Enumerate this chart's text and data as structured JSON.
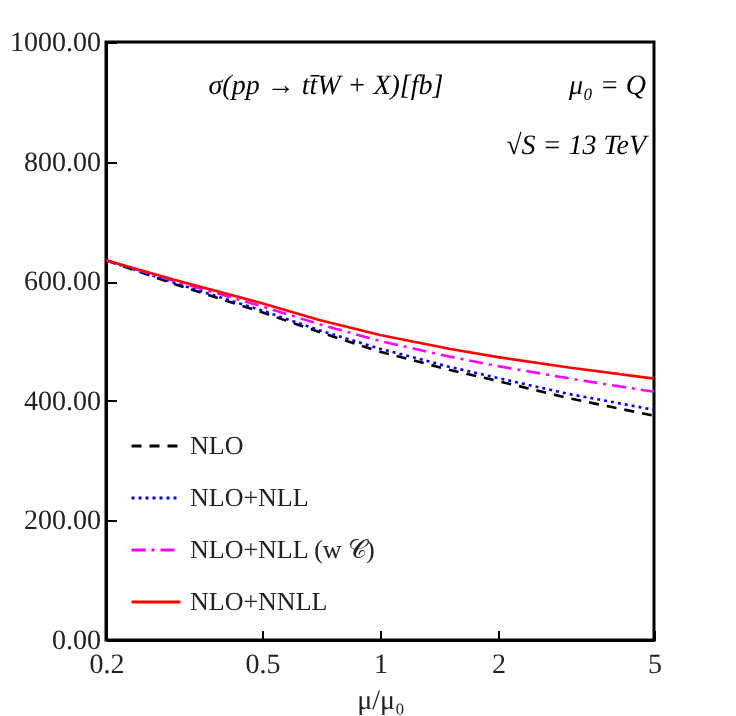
{
  "chart_data": {
    "type": "line",
    "annotations": [
      "σ(pp → tt̄W + X)[fb]",
      "μ₀ = Q",
      "√S = 13 TeV"
    ],
    "xlabel": "μ/μ₀",
    "x": [
      0.2,
      0.3,
      0.5,
      0.7,
      1,
      1.5,
      2,
      3,
      5
    ],
    "series": [
      {
        "name": "NLO",
        "color": "#000000",
        "line_style": "dashed",
        "values": [
          635,
          595,
          548,
          515,
          482,
          452,
          433,
          405,
          375
        ]
      },
      {
        "name": "NLO+NLL",
        "color": "#0000ff",
        "line_style": "dotted",
        "values": [
          635,
          597,
          551,
          518,
          487,
          457,
          438,
          412,
          385
        ]
      },
      {
        "name": "NLO+NLL (w 𝒞)",
        "color": "#ff00ff",
        "line_style": "dashdot",
        "values": [
          635,
          600,
          558,
          528,
          500,
          474,
          458,
          438,
          415
        ]
      },
      {
        "name": "NLO+NNLL",
        "color": "#ff0000",
        "line_style": "solid",
        "values": [
          635,
          602,
          563,
          535,
          510,
          487,
          473,
          456,
          437
        ]
      }
    ],
    "log": "x",
    "xlim": [
      0.2,
      5
    ],
    "xticks": [
      0.2,
      0.5,
      1,
      2,
      5
    ],
    "ylim": [
      0,
      1000
    ],
    "yticks": [
      {
        "value": 0,
        "label": "0.00"
      },
      {
        "value": 200,
        "label": "200.00"
      },
      {
        "value": 400,
        "label": "400.00"
      },
      {
        "value": 600,
        "label": "600.00"
      },
      {
        "value": 800,
        "label": "800.00"
      },
      {
        "value": 1000,
        "label": "1000.00"
      }
    ],
    "legend": "bottom left",
    "grid": false
  }
}
